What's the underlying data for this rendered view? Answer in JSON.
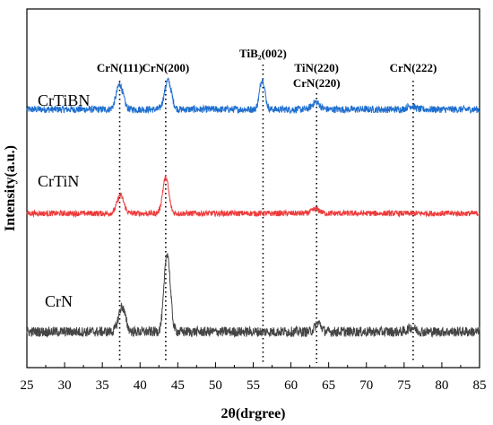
{
  "chart_data": {
    "type": "line",
    "xlabel": "2θ(drgree)",
    "ylabel": "Intensity(a.u.)",
    "xlim": [
      25,
      85
    ],
    "x_ticks": [
      "25",
      "30",
      "35",
      "40",
      "45",
      "50",
      "55",
      "60",
      "65",
      "70",
      "75",
      "80",
      "85"
    ],
    "y_ticks_labeled": false,
    "grid": false,
    "legend": "inline text labels beside each pattern",
    "series": [
      {
        "name": "CrTiBN",
        "color": "#1f6fcf",
        "baseline": 0.72,
        "noise": 0.01,
        "peaks": [
          {
            "x": 37.3,
            "height": 0.07,
            "width": 0.45
          },
          {
            "x": 43.7,
            "height": 0.08,
            "width": 0.45
          },
          {
            "x": 56.2,
            "height": 0.085,
            "width": 0.35
          },
          {
            "x": 63.3,
            "height": 0.02,
            "width": 0.5
          },
          {
            "x": 75.9,
            "height": 0.01,
            "width": 0.5
          }
        ]
      },
      {
        "name": "CrTiN",
        "color": "#ee3b3b",
        "baseline": 0.43,
        "noise": 0.008,
        "peaks": [
          {
            "x": 37.4,
            "height": 0.05,
            "width": 0.45
          },
          {
            "x": 43.4,
            "height": 0.1,
            "width": 0.4
          },
          {
            "x": 63.3,
            "height": 0.012,
            "width": 0.5
          }
        ]
      },
      {
        "name": "CrN",
        "color": "#444444",
        "baseline": 0.1,
        "noise": 0.014,
        "peaks": [
          {
            "x": 37.6,
            "height": 0.07,
            "width": 0.45
          },
          {
            "x": 43.6,
            "height": 0.22,
            "width": 0.4
          },
          {
            "x": 63.6,
            "height": 0.025,
            "width": 0.4
          },
          {
            "x": 76.0,
            "height": 0.012,
            "width": 0.5
          }
        ]
      }
    ],
    "reference_lines": [
      {
        "x": 37.3,
        "label_lines": [
          "CrN(111)"
        ]
      },
      {
        "x": 43.4,
        "label_lines": [
          "CrN(200)"
        ]
      },
      {
        "x": 56.3,
        "label_lines": [
          "TiB₂(002)"
        ]
      },
      {
        "x": 63.4,
        "label_lines": [
          "TiN(220)",
          "CrN(220)"
        ]
      },
      {
        "x": 76.2,
        "label_lines": [
          "CrN(222)"
        ]
      }
    ]
  }
}
